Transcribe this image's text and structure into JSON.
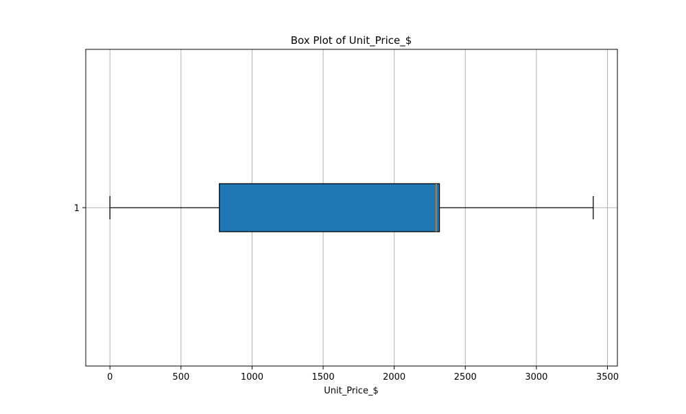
{
  "chart_data": {
    "type": "boxplot",
    "title": "Box Plot of  Unit_Price_$",
    "xlabel": "Unit_Price_$",
    "ylabel": "",
    "orientation": "horizontal",
    "xlim": [
      -170,
      3570
    ],
    "xticks": [
      0,
      500,
      1000,
      1500,
      2000,
      2500,
      3000,
      3500
    ],
    "yticks": [
      "1"
    ],
    "grid": true,
    "colors": {
      "box_fill": "#1f77b4",
      "median": "#ff7f0e",
      "grid": "#b0b0b0",
      "line": "#000000"
    },
    "boxes": [
      {
        "category": "1",
        "whisker_low": 0,
        "q1": 770,
        "median": 2295,
        "q3": 2318,
        "whisker_high": 3400
      }
    ]
  }
}
